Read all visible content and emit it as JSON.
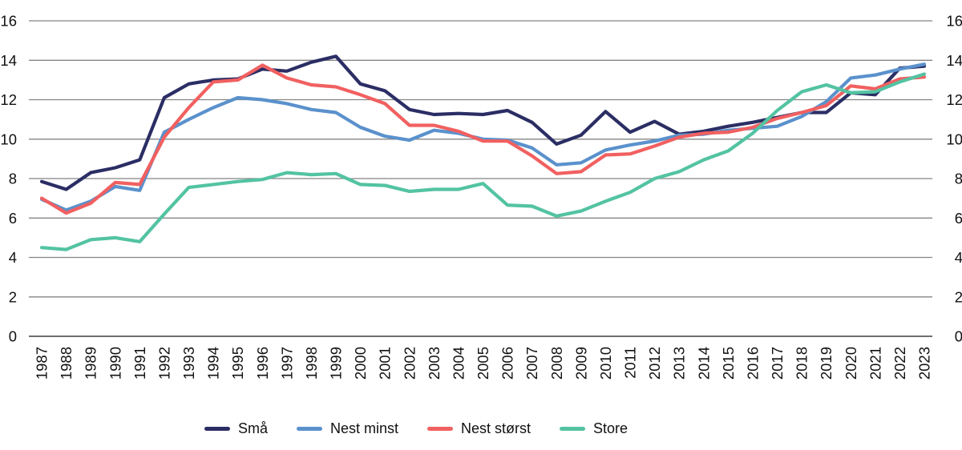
{
  "chart_data": {
    "type": "line",
    "title": "",
    "x_label": "",
    "y_label": "",
    "x": [
      "1987",
      "1988",
      "1989",
      "1990",
      "1991",
      "1992",
      "1993",
      "1994",
      "1995",
      "1996",
      "1997",
      "1998",
      "1999",
      "2000",
      "2001",
      "2002",
      "2003",
      "2004",
      "2005",
      "2006",
      "2007",
      "2008",
      "2009",
      "2010",
      "2011",
      "2012",
      "2013",
      "2014",
      "2015",
      "2016",
      "2017",
      "2018",
      "2019",
      "2020",
      "2021",
      "2022",
      "2023"
    ],
    "y_axis": {
      "min": 0,
      "max": 16,
      "step": 2,
      "ticks": [
        0,
        2,
        4,
        6,
        8,
        10,
        12,
        14,
        16
      ],
      "tick_sides": "both",
      "grid": "horizontal"
    },
    "legend_position": "bottom",
    "grid_color": "#858585",
    "axis_color": "#6f6f6f",
    "text_color": "#111111",
    "series": [
      {
        "name": "Små",
        "color": "#2b2e64",
        "values": [
          7.85,
          7.45,
          8.3,
          8.55,
          8.95,
          12.1,
          12.8,
          13.0,
          13.05,
          13.55,
          13.45,
          13.9,
          14.2,
          12.8,
          12.45,
          11.5,
          11.25,
          11.3,
          11.25,
          11.45,
          10.85,
          9.75,
          10.2,
          11.4,
          10.35,
          10.9,
          10.25,
          10.4,
          10.65,
          10.85,
          11.1,
          11.35,
          11.35,
          12.35,
          12.25,
          13.6,
          13.7
        ]
      },
      {
        "name": "Nest minst",
        "color": "#5a91cc",
        "values": [
          6.95,
          6.4,
          6.85,
          7.6,
          7.4,
          10.35,
          11.0,
          11.6,
          12.1,
          12.0,
          11.8,
          11.5,
          11.35,
          10.6,
          10.15,
          9.95,
          10.45,
          10.3,
          10.0,
          9.95,
          9.55,
          8.7,
          8.8,
          9.45,
          9.7,
          9.9,
          10.2,
          10.25,
          10.45,
          10.55,
          10.65,
          11.15,
          11.9,
          13.1,
          13.25,
          13.55,
          13.8
        ]
      },
      {
        "name": "Nest størst",
        "color": "#f16060",
        "values": [
          7.0,
          6.25,
          6.75,
          7.8,
          7.7,
          10.1,
          11.6,
          12.9,
          13.0,
          13.75,
          13.1,
          12.75,
          12.65,
          12.25,
          11.8,
          10.7,
          10.7,
          10.4,
          9.9,
          9.9,
          9.15,
          8.25,
          8.35,
          9.2,
          9.25,
          9.65,
          10.1,
          10.3,
          10.35,
          10.6,
          11.05,
          11.35,
          11.7,
          12.7,
          12.55,
          13.05,
          13.15
        ]
      },
      {
        "name": "Store",
        "color": "#53c3a2",
        "values": [
          4.5,
          4.4,
          4.9,
          5.0,
          4.8,
          6.2,
          7.55,
          7.7,
          7.85,
          7.95,
          8.3,
          8.2,
          8.25,
          7.7,
          7.65,
          7.35,
          7.45,
          7.45,
          7.75,
          6.65,
          6.6,
          6.1,
          6.35,
          6.85,
          7.3,
          8.0,
          8.35,
          8.95,
          9.4,
          10.3,
          11.45,
          12.4,
          12.75,
          12.35,
          12.4,
          12.9,
          13.3
        ]
      }
    ]
  }
}
